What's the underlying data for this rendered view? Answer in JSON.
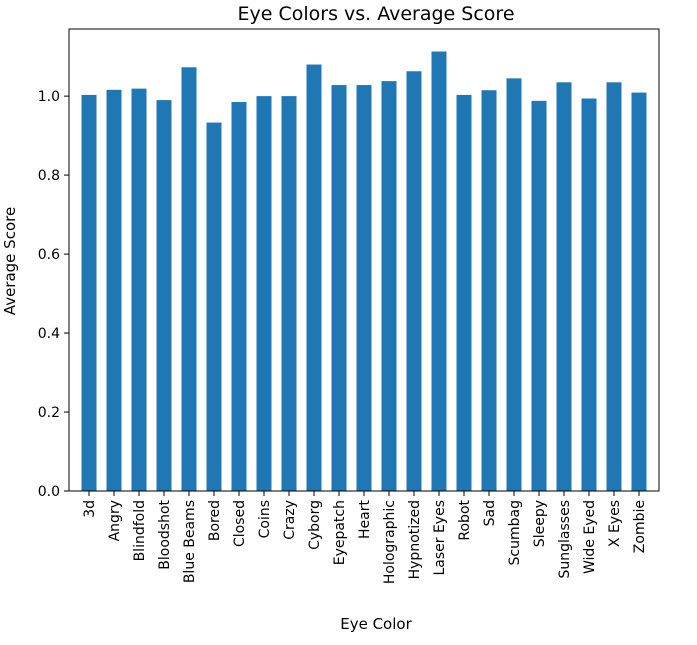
{
  "chart_data": {
    "type": "bar",
    "title": "Eye Colors vs. Average Score",
    "xlabel": "Eye Color",
    "ylabel": "Average Score",
    "ylim": [
      0,
      1.17
    ],
    "yticks": [
      0.0,
      0.2,
      0.4,
      0.6,
      0.8,
      1.0
    ],
    "ytick_labels": [
      "0.0",
      "0.2",
      "0.4",
      "0.6",
      "0.8",
      "1.0"
    ],
    "grid": false,
    "bar_color": "#1f77b4",
    "categories": [
      "3d",
      "Angry",
      "Blindfold",
      "Bloodshot",
      "Blue Beams",
      "Bored",
      "Closed",
      "Coins",
      "Crazy",
      "Cyborg",
      "Eyepatch",
      "Heart",
      "Holographic",
      "Hypnotized",
      "Laser Eyes",
      "Robot",
      "Sad",
      "Scumbag",
      "Sleepy",
      "Sunglasses",
      "Wide Eyed",
      "X Eyes",
      "Zombie"
    ],
    "values": [
      1.003,
      1.016,
      1.019,
      0.99,
      1.073,
      0.933,
      0.985,
      1.0,
      1.0,
      1.08,
      1.028,
      1.028,
      1.038,
      1.063,
      1.113,
      1.003,
      1.015,
      1.045,
      0.988,
      1.035,
      0.994,
      1.035,
      1.009
    ]
  }
}
